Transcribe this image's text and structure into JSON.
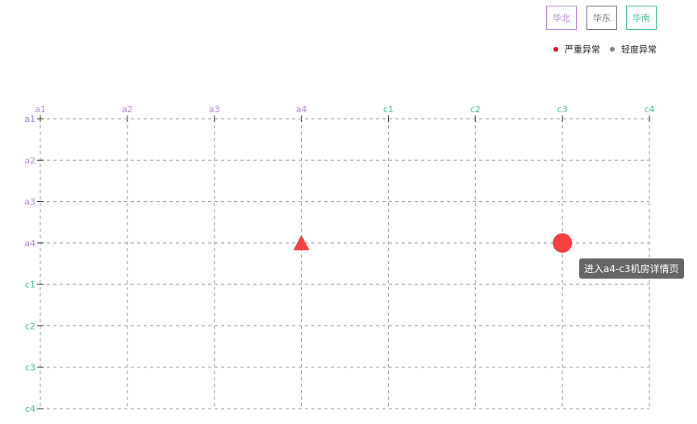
{
  "filters": [
    {
      "label": "华北",
      "color": "#b98ad6"
    },
    {
      "label": "华东",
      "color": "#777777"
    },
    {
      "label": "华南",
      "color": "#4cc08e"
    }
  ],
  "legend": [
    {
      "label": "严重异常",
      "color": "#e8141b"
    },
    {
      "label": "轻度异常",
      "color": "#888888"
    }
  ],
  "chart_data": {
    "type": "scatter",
    "x_categories": [
      "a1",
      "a2",
      "a3",
      "a4",
      "c1",
      "c2",
      "c3",
      "c4"
    ],
    "y_categories": [
      "a1",
      "a2",
      "a3",
      "a4",
      "c1",
      "c2",
      "c3",
      "c4"
    ],
    "category_colors": {
      "a": "#b98ad6",
      "c": "#4cc08e"
    },
    "grid": true,
    "points": [
      {
        "x": "a4",
        "y": "a4",
        "shape": "triangle",
        "severity": "严重异常",
        "color": "#f44040"
      },
      {
        "x": "c3",
        "y": "a4",
        "shape": "circle",
        "severity": "严重异常",
        "color": "#f44040"
      }
    ]
  },
  "tooltip": "进入a4-c3机房详情页"
}
